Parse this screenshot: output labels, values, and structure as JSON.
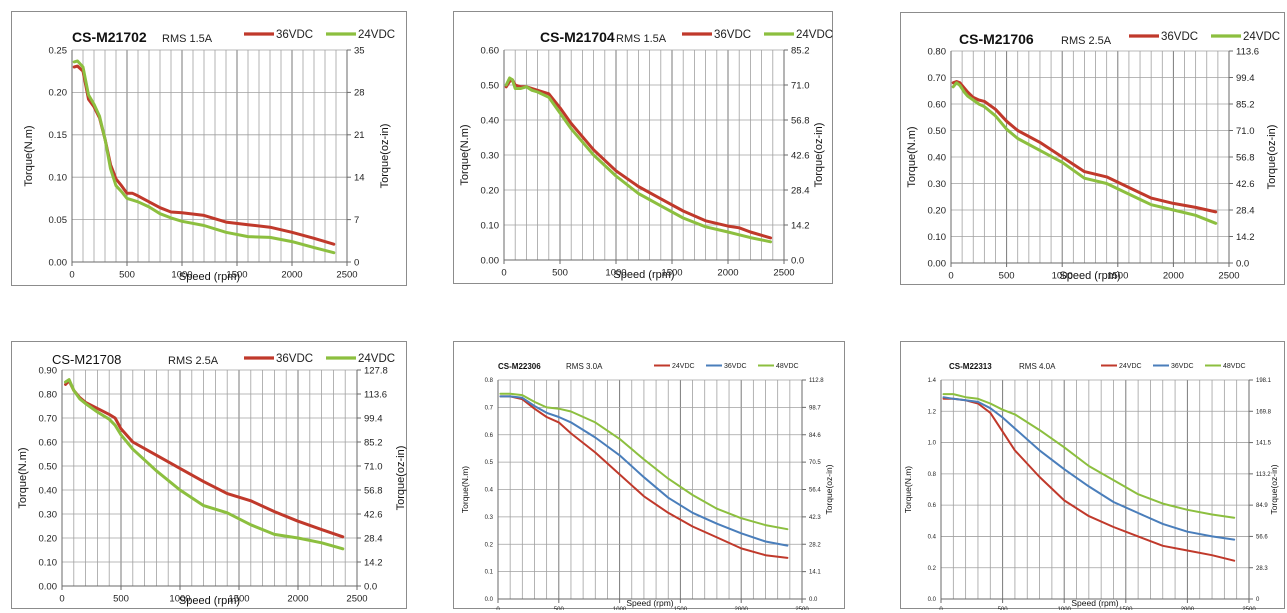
{
  "colors": {
    "red": "#c0392b",
    "green": "#8cbf3f",
    "blue": "#4a7ebb",
    "grid": "#a0a0a0",
    "axis": "#6a6a6a"
  },
  "chart_data": [
    {
      "type": "line",
      "title": "CS-M21702",
      "subtitle": "RMS 1.5A",
      "xlabel": "Speed (rpm)",
      "ylabel": "Torque(N.m)",
      "y2label": "Torque(oz-in)",
      "xlim": [
        0,
        2500
      ],
      "ylim": [
        0,
        0.25
      ],
      "x_ticks": [
        "0",
        "500",
        "1000",
        "1500",
        "2000",
        "2500"
      ],
      "y_ticks": [
        "0.00",
        "0.05",
        "0.10",
        "0.15",
        "0.20",
        "0.25"
      ],
      "y2_ticks": [
        "0",
        "7",
        "14",
        "21",
        "28",
        "35"
      ],
      "grid": true,
      "legend_position": "top",
      "series": [
        {
          "name": "36VDC",
          "color": "red",
          "x": [
            20,
            50,
            100,
            150,
            200,
            250,
            300,
            350,
            400,
            450,
            500,
            550,
            600,
            700,
            800,
            900,
            1000,
            1200,
            1400,
            1600,
            1800,
            2000,
            2200,
            2380
          ],
          "y": [
            0.23,
            0.231,
            0.225,
            0.192,
            0.183,
            0.17,
            0.145,
            0.115,
            0.098,
            0.09,
            0.081,
            0.081,
            0.078,
            0.071,
            0.064,
            0.059,
            0.058,
            0.055,
            0.047,
            0.044,
            0.041,
            0.035,
            0.028,
            0.021
          ]
        },
        {
          "name": "24VDC",
          "color": "green",
          "x": [
            20,
            50,
            100,
            150,
            200,
            250,
            300,
            350,
            400,
            450,
            500,
            550,
            600,
            700,
            800,
            900,
            1000,
            1200,
            1400,
            1600,
            1800,
            2000,
            2200,
            2380
          ],
          "y": [
            0.236,
            0.237,
            0.23,
            0.197,
            0.186,
            0.172,
            0.145,
            0.11,
            0.09,
            0.083,
            0.075,
            0.073,
            0.071,
            0.065,
            0.057,
            0.052,
            0.048,
            0.043,
            0.035,
            0.03,
            0.029,
            0.024,
            0.017,
            0.011
          ]
        }
      ]
    },
    {
      "type": "line",
      "title": "CS-M21704",
      "subtitle": "RMS 1.5A",
      "xlabel": "Speed (rpm)",
      "ylabel": "Torque(N.m)",
      "y2label": "Torque(oz-in)",
      "xlim": [
        0,
        2500
      ],
      "ylim": [
        0,
        0.6
      ],
      "x_ticks": [
        "0",
        "500",
        "1000",
        "1500",
        "2000",
        "2500"
      ],
      "y_ticks": [
        "0.00",
        "0.10",
        "0.20",
        "0.30",
        "0.40",
        "0.50",
        "0.60"
      ],
      "y2_ticks": [
        "0.0",
        "14.2",
        "28.4",
        "42.6",
        "56.8",
        "71.0",
        "85.2"
      ],
      "grid": true,
      "legend_position": "top",
      "series": [
        {
          "name": "36VDC",
          "color": "red",
          "x": [
            20,
            50,
            75,
            100,
            150,
            200,
            250,
            300,
            400,
            500,
            600,
            800,
            1000,
            1200,
            1400,
            1600,
            1800,
            2000,
            2100,
            2200,
            2380
          ],
          "y": [
            0.495,
            0.51,
            0.515,
            0.5,
            0.495,
            0.495,
            0.49,
            0.485,
            0.475,
            0.435,
            0.39,
            0.315,
            0.255,
            0.21,
            0.175,
            0.14,
            0.112,
            0.097,
            0.092,
            0.08,
            0.063
          ]
        },
        {
          "name": "24VDC",
          "color": "green",
          "x": [
            20,
            50,
            75,
            100,
            150,
            200,
            250,
            300,
            400,
            500,
            600,
            800,
            1000,
            1200,
            1400,
            1600,
            1800,
            2000,
            2100,
            2200,
            2380
          ],
          "y": [
            0.5,
            0.52,
            0.515,
            0.49,
            0.49,
            0.495,
            0.485,
            0.48,
            0.465,
            0.42,
            0.375,
            0.3,
            0.24,
            0.19,
            0.155,
            0.12,
            0.095,
            0.08,
            0.072,
            0.064,
            0.052
          ]
        }
      ]
    },
    {
      "type": "line",
      "title": "CS-M21706",
      "subtitle": "RMS 2.5A",
      "xlabel": "Speed (rpm)",
      "ylabel": "Torque(N.m)",
      "y2label": "Torque(oz-in)",
      "xlim": [
        0,
        2500
      ],
      "ylim": [
        0,
        0.8
      ],
      "x_ticks": [
        "0",
        "500",
        "1000",
        "1500",
        "2000",
        "2500"
      ],
      "y_ticks": [
        "0.00",
        "0.10",
        "0.20",
        "0.30",
        "0.40",
        "0.50",
        "0.60",
        "0.70",
        "0.80"
      ],
      "y2_ticks": [
        "0.0",
        "14.2",
        "28.4",
        "42.6",
        "56.8",
        "71.0",
        "85.2",
        "99.4",
        "113.6"
      ],
      "grid": true,
      "legend_position": "top",
      "series": [
        {
          "name": "36VDC",
          "color": "red",
          "x": [
            20,
            50,
            80,
            120,
            150,
            200,
            250,
            300,
            400,
            500,
            600,
            800,
            1000,
            1200,
            1400,
            1600,
            1800,
            2000,
            2200,
            2380
          ],
          "y": [
            0.68,
            0.685,
            0.68,
            0.66,
            0.645,
            0.625,
            0.615,
            0.61,
            0.58,
            0.535,
            0.5,
            0.455,
            0.4,
            0.345,
            0.325,
            0.285,
            0.245,
            0.225,
            0.21,
            0.193
          ]
        },
        {
          "name": "24VDC",
          "color": "green",
          "x": [
            20,
            50,
            80,
            120,
            150,
            200,
            250,
            300,
            400,
            500,
            600,
            800,
            1000,
            1200,
            1400,
            1600,
            1800,
            2000,
            2200,
            2380
          ],
          "y": [
            0.665,
            0.68,
            0.67,
            0.645,
            0.63,
            0.615,
            0.6,
            0.59,
            0.555,
            0.505,
            0.47,
            0.425,
            0.38,
            0.32,
            0.3,
            0.26,
            0.22,
            0.2,
            0.18,
            0.15
          ]
        }
      ]
    },
    {
      "type": "line",
      "title": "CS-M21708",
      "subtitle": "RMS 2.5A",
      "xlabel": "Speed (rpm)",
      "ylabel": "Torque(N.m)",
      "y2label": "Torque(oz-in)",
      "xlim": [
        0,
        2500
      ],
      "ylim": [
        0,
        0.9
      ],
      "x_ticks": [
        "0",
        "500",
        "1000",
        "1500",
        "2000",
        "2500"
      ],
      "y_ticks": [
        "0.00",
        "0.10",
        "0.20",
        "0.30",
        "0.40",
        "0.50",
        "0.60",
        "0.70",
        "0.80",
        "0.90"
      ],
      "y2_ticks": [
        "0.0",
        "14.2",
        "28.4",
        "42.6",
        "56.8",
        "71.0",
        "85.2",
        "99.4",
        "113.6",
        "127.8"
      ],
      "grid": true,
      "legend_position": "top",
      "series": [
        {
          "name": "36VDC",
          "color": "red",
          "x": [
            30,
            60,
            100,
            150,
            200,
            300,
            400,
            450,
            500,
            600,
            800,
            1000,
            1200,
            1400,
            1600,
            1800,
            2000,
            2200,
            2380
          ],
          "y": [
            0.84,
            0.855,
            0.815,
            0.785,
            0.765,
            0.74,
            0.715,
            0.7,
            0.655,
            0.6,
            0.545,
            0.49,
            0.435,
            0.385,
            0.355,
            0.31,
            0.27,
            0.235,
            0.205
          ]
        },
        {
          "name": "24VDC",
          "color": "green",
          "x": [
            30,
            60,
            100,
            150,
            200,
            300,
            400,
            450,
            500,
            600,
            800,
            1000,
            1200,
            1400,
            1600,
            1800,
            2000,
            2200,
            2380
          ],
          "y": [
            0.85,
            0.86,
            0.815,
            0.78,
            0.76,
            0.725,
            0.695,
            0.67,
            0.63,
            0.57,
            0.48,
            0.4,
            0.335,
            0.305,
            0.255,
            0.215,
            0.2,
            0.18,
            0.155
          ]
        }
      ]
    },
    {
      "type": "line",
      "title": "CS-M22306",
      "subtitle": "RMS 3.0A",
      "xlabel": "Speed (rpm)",
      "ylabel": "Torque(N.m)",
      "y2label": "Torque(oz-in)",
      "xlim": [
        0,
        2500
      ],
      "ylim": [
        0,
        0.8
      ],
      "x_ticks": [
        "0",
        "500",
        "1000",
        "1500",
        "2000",
        "2500"
      ],
      "y_ticks": [
        "0.0",
        "0.1",
        "0.2",
        "0.3",
        "0.4",
        "0.5",
        "0.6",
        "0.7",
        "0.8"
      ],
      "y2_ticks": [
        "0.0",
        "14.1",
        "28.2",
        "42.3",
        "56.4",
        "70.5",
        "84.6",
        "98.7",
        "112.8"
      ],
      "grid": true,
      "legend_position": "top",
      "series": [
        {
          "name": "24VDC",
          "color": "red",
          "x": [
            20,
            100,
            200,
            300,
            400,
            500,
            600,
            800,
            1000,
            1200,
            1400,
            1600,
            1800,
            2000,
            2200,
            2380
          ],
          "y": [
            0.74,
            0.74,
            0.73,
            0.695,
            0.665,
            0.645,
            0.605,
            0.535,
            0.455,
            0.375,
            0.315,
            0.265,
            0.225,
            0.185,
            0.16,
            0.15
          ]
        },
        {
          "name": "36VDC",
          "color": "blue",
          "x": [
            20,
            100,
            200,
            300,
            400,
            500,
            600,
            800,
            1000,
            1200,
            1400,
            1600,
            1800,
            2000,
            2200,
            2380
          ],
          "y": [
            0.74,
            0.74,
            0.735,
            0.705,
            0.68,
            0.665,
            0.645,
            0.59,
            0.525,
            0.445,
            0.37,
            0.315,
            0.275,
            0.24,
            0.21,
            0.195
          ]
        },
        {
          "name": "48VDC",
          "color": "green",
          "x": [
            20,
            100,
            200,
            300,
            400,
            500,
            600,
            800,
            1000,
            1200,
            1400,
            1600,
            1800,
            2000,
            2200,
            2380
          ],
          "y": [
            0.75,
            0.75,
            0.745,
            0.72,
            0.7,
            0.695,
            0.685,
            0.645,
            0.585,
            0.51,
            0.44,
            0.38,
            0.33,
            0.295,
            0.27,
            0.255
          ]
        }
      ]
    },
    {
      "type": "line",
      "title": "CS-M22313",
      "subtitle": "RMS 4.0A",
      "xlabel": "Speed (rpm)",
      "ylabel": "Torque(N.m)",
      "y2label": "Torque(oz-in)",
      "xlim": [
        0,
        2500
      ],
      "ylim": [
        0,
        1.4
      ],
      "x_ticks": [
        "0",
        "500",
        "1000",
        "1500",
        "2000",
        "2500"
      ],
      "y_ticks": [
        "0.0",
        "0.2",
        "0.4",
        "0.6",
        "0.8",
        "1.0",
        "1.2",
        "1.4"
      ],
      "y2_ticks": [
        "0",
        "28.3",
        "56.6",
        "84.9",
        "113.2",
        "141.5",
        "169.8",
        "198.1"
      ],
      "grid": true,
      "legend_position": "top",
      "series": [
        {
          "name": "24VDC",
          "color": "red",
          "x": [
            20,
            100,
            200,
            300,
            400,
            500,
            600,
            800,
            1000,
            1200,
            1400,
            1600,
            1800,
            2000,
            2200,
            2380
          ],
          "y": [
            1.28,
            1.28,
            1.27,
            1.25,
            1.19,
            1.07,
            0.95,
            0.78,
            0.63,
            0.53,
            0.46,
            0.4,
            0.34,
            0.31,
            0.28,
            0.245
          ]
        },
        {
          "name": "36VDC",
          "color": "blue",
          "x": [
            20,
            100,
            200,
            300,
            400,
            500,
            600,
            800,
            1000,
            1200,
            1400,
            1600,
            1800,
            2000,
            2200,
            2380
          ],
          "y": [
            1.29,
            1.28,
            1.27,
            1.26,
            1.22,
            1.16,
            1.09,
            0.95,
            0.83,
            0.72,
            0.62,
            0.55,
            0.48,
            0.43,
            0.4,
            0.38
          ]
        },
        {
          "name": "48VDC",
          "color": "green",
          "x": [
            20,
            100,
            200,
            300,
            400,
            500,
            600,
            800,
            1000,
            1200,
            1400,
            1600,
            1800,
            2000,
            2200,
            2380
          ],
          "y": [
            1.31,
            1.31,
            1.29,
            1.28,
            1.25,
            1.21,
            1.18,
            1.08,
            0.97,
            0.85,
            0.76,
            0.67,
            0.61,
            0.57,
            0.54,
            0.52
          ]
        }
      ]
    }
  ]
}
